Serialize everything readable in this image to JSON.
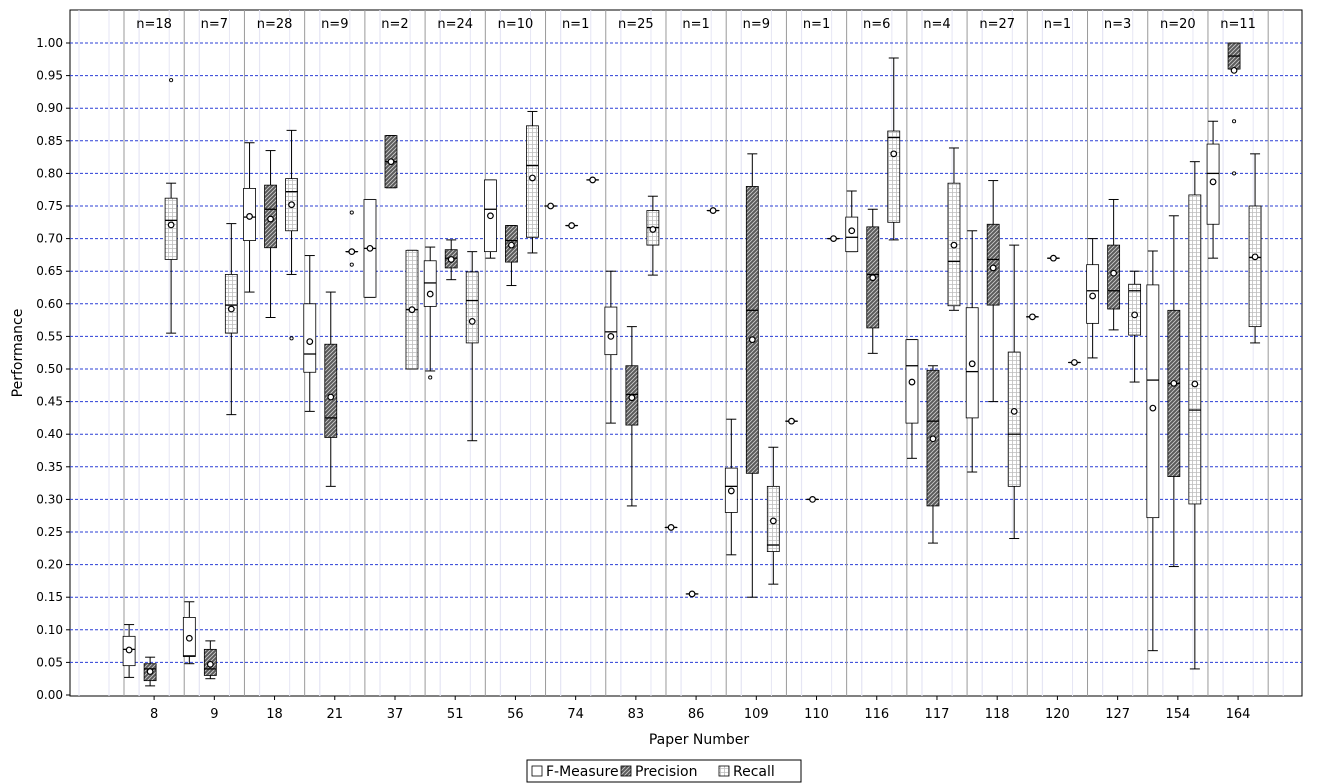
{
  "chart_data": {
    "type": "box",
    "xlabel": "Paper Number",
    "ylabel": "Performance",
    "ylim": [
      0,
      1
    ],
    "y_ticks": [
      "0.00",
      "0.05",
      "0.10",
      "0.15",
      "0.20",
      "0.25",
      "0.30",
      "0.35",
      "0.40",
      "0.45",
      "0.50",
      "0.55",
      "0.60",
      "0.65",
      "0.70",
      "0.75",
      "0.80",
      "0.85",
      "0.90",
      "0.95",
      "1.00"
    ],
    "legend_position": "bottom-center",
    "grid": true,
    "colors": {
      "f_measure_fill": "#ffffff",
      "precision_fill": "#5a5a5a",
      "recall_fill": "#e4e4e4",
      "grid_line": "#2b3fd6",
      "divider": "#9a9a9a"
    },
    "series": [
      {
        "name": "F-Measure"
      },
      {
        "name": "Precision"
      },
      {
        "name": "Recall"
      }
    ],
    "categories": [
      {
        "paper": "8",
        "n": "n=18",
        "boxes": [
          {
            "min": 0.027,
            "q1": 0.045,
            "med": 0.07,
            "q3": 0.09,
            "max": 0.108,
            "mean": 0.069,
            "outliers": []
          },
          {
            "min": 0.014,
            "q1": 0.022,
            "med": 0.04,
            "q3": 0.048,
            "max": 0.058,
            "mean": 0.036,
            "outliers": []
          },
          {
            "min": 0.555,
            "q1": 0.668,
            "med": 0.728,
            "q3": 0.762,
            "max": 0.785,
            "mean": 0.721,
            "outliers": [
              0.943
            ]
          }
        ]
      },
      {
        "paper": "9",
        "n": "n=7",
        "boxes": [
          {
            "min": 0.048,
            "q1": 0.059,
            "med": 0.06,
            "q3": 0.119,
            "max": 0.143,
            "mean": 0.087,
            "outliers": []
          },
          {
            "min": 0.025,
            "q1": 0.03,
            "med": 0.04,
            "q3": 0.07,
            "max": 0.083,
            "mean": 0.047,
            "outliers": []
          },
          {
            "min": 0.43,
            "q1": 0.555,
            "med": 0.598,
            "q3": 0.645,
            "max": 0.723,
            "mean": 0.592,
            "outliers": []
          }
        ]
      },
      {
        "paper": "18",
        "n": "n=28",
        "boxes": [
          {
            "min": 0.618,
            "q1": 0.697,
            "med": 0.733,
            "q3": 0.777,
            "max": 0.847,
            "mean": 0.734,
            "outliers": []
          },
          {
            "min": 0.579,
            "q1": 0.686,
            "med": 0.745,
            "q3": 0.782,
            "max": 0.835,
            "mean": 0.73,
            "outliers": []
          },
          {
            "min": 0.645,
            "q1": 0.712,
            "med": 0.772,
            "q3": 0.792,
            "max": 0.866,
            "mean": 0.752,
            "outliers": [
              0.547
            ]
          }
        ]
      },
      {
        "paper": "21",
        "n": "n=9",
        "boxes": [
          {
            "min": 0.435,
            "q1": 0.495,
            "med": 0.523,
            "q3": 0.6,
            "max": 0.674,
            "mean": 0.542,
            "outliers": []
          },
          {
            "min": 0.32,
            "q1": 0.395,
            "med": 0.425,
            "q3": 0.538,
            "max": 0.618,
            "mean": 0.457,
            "outliers": []
          },
          {
            "min": 0.68,
            "q1": 0.68,
            "med": 0.68,
            "q3": 0.68,
            "max": 0.68,
            "mean": 0.68,
            "outliers": [
              0.74,
              0.66
            ]
          }
        ]
      },
      {
        "paper": "37",
        "n": "n=2",
        "boxes": [
          {
            "min": 0.61,
            "q1": 0.61,
            "med": 0.685,
            "q3": 0.76,
            "max": 0.76,
            "mean": 0.685,
            "outliers": []
          },
          {
            "min": 0.778,
            "q1": 0.778,
            "med": 0.818,
            "q3": 0.858,
            "max": 0.858,
            "mean": 0.818,
            "outliers": []
          },
          {
            "min": 0.5,
            "q1": 0.5,
            "med": 0.591,
            "q3": 0.682,
            "max": 0.682,
            "mean": 0.591,
            "outliers": []
          }
        ]
      },
      {
        "paper": "51",
        "n": "n=24",
        "boxes": [
          {
            "min": 0.497,
            "q1": 0.596,
            "med": 0.632,
            "q3": 0.666,
            "max": 0.687,
            "mean": 0.615,
            "outliers": [
              0.487
            ]
          },
          {
            "min": 0.637,
            "q1": 0.655,
            "med": 0.67,
            "q3": 0.683,
            "max": 0.698,
            "mean": 0.668,
            "outliers": []
          },
          {
            "min": 0.39,
            "q1": 0.54,
            "med": 0.605,
            "q3": 0.649,
            "max": 0.68,
            "mean": 0.573,
            "outliers": []
          }
        ]
      },
      {
        "paper": "56",
        "n": "n=10",
        "boxes": [
          {
            "min": 0.67,
            "q1": 0.68,
            "med": 0.745,
            "q3": 0.79,
            "max": 0.79,
            "mean": 0.735,
            "outliers": []
          },
          {
            "min": 0.628,
            "q1": 0.664,
            "med": 0.697,
            "q3": 0.72,
            "max": 0.72,
            "mean": 0.69,
            "outliers": []
          },
          {
            "min": 0.678,
            "q1": 0.702,
            "med": 0.812,
            "q3": 0.873,
            "max": 0.895,
            "mean": 0.793,
            "outliers": []
          }
        ]
      },
      {
        "paper": "74",
        "n": "n=1",
        "boxes": [
          {
            "min": 0.75,
            "q1": 0.75,
            "med": 0.75,
            "q3": 0.75,
            "max": 0.75,
            "mean": 0.75,
            "outliers": []
          },
          {
            "min": 0.72,
            "q1": 0.72,
            "med": 0.72,
            "q3": 0.72,
            "max": 0.72,
            "mean": 0.72,
            "outliers": []
          },
          {
            "min": 0.79,
            "q1": 0.79,
            "med": 0.79,
            "q3": 0.79,
            "max": 0.79,
            "mean": 0.79,
            "outliers": []
          }
        ]
      },
      {
        "paper": "83",
        "n": "n=25",
        "boxes": [
          {
            "min": 0.417,
            "q1": 0.522,
            "med": 0.557,
            "q3": 0.595,
            "max": 0.65,
            "mean": 0.55,
            "outliers": []
          },
          {
            "min": 0.29,
            "q1": 0.414,
            "med": 0.461,
            "q3": 0.505,
            "max": 0.565,
            "mean": 0.456,
            "outliers": []
          },
          {
            "min": 0.644,
            "q1": 0.69,
            "med": 0.717,
            "q3": 0.743,
            "max": 0.765,
            "mean": 0.714,
            "outliers": []
          }
        ]
      },
      {
        "paper": "86",
        "n": "n=1",
        "boxes": [
          {
            "min": 0.257,
            "q1": 0.257,
            "med": 0.257,
            "q3": 0.257,
            "max": 0.257,
            "mean": 0.257,
            "outliers": []
          },
          {
            "min": 0.155,
            "q1": 0.155,
            "med": 0.155,
            "q3": 0.155,
            "max": 0.155,
            "mean": 0.155,
            "outliers": []
          },
          {
            "min": 0.743,
            "q1": 0.743,
            "med": 0.743,
            "q3": 0.743,
            "max": 0.743,
            "mean": 0.743,
            "outliers": []
          }
        ]
      },
      {
        "paper": "109",
        "n": "n=9",
        "boxes": [
          {
            "min": 0.215,
            "q1": 0.28,
            "med": 0.32,
            "q3": 0.348,
            "max": 0.423,
            "mean": 0.313,
            "outliers": []
          },
          {
            "min": 0.15,
            "q1": 0.34,
            "med": 0.59,
            "q3": 0.78,
            "max": 0.83,
            "mean": 0.545,
            "outliers": []
          },
          {
            "min": 0.17,
            "q1": 0.22,
            "med": 0.23,
            "q3": 0.32,
            "max": 0.38,
            "mean": 0.267,
            "outliers": []
          }
        ]
      },
      {
        "paper": "110",
        "n": "n=1",
        "boxes": [
          {
            "min": 0.42,
            "q1": 0.42,
            "med": 0.42,
            "q3": 0.42,
            "max": 0.42,
            "mean": 0.42,
            "outliers": []
          },
          {
            "min": 0.3,
            "q1": 0.3,
            "med": 0.3,
            "q3": 0.3,
            "max": 0.3,
            "mean": 0.3,
            "outliers": []
          },
          {
            "min": 0.7,
            "q1": 0.7,
            "med": 0.7,
            "q3": 0.7,
            "max": 0.7,
            "mean": 0.7,
            "outliers": []
          }
        ]
      },
      {
        "paper": "116",
        "n": "n=6",
        "boxes": [
          {
            "min": 0.68,
            "q1": 0.68,
            "med": 0.702,
            "q3": 0.733,
            "max": 0.773,
            "mean": 0.712,
            "outliers": []
          },
          {
            "min": 0.524,
            "q1": 0.563,
            "med": 0.645,
            "q3": 0.718,
            "max": 0.745,
            "mean": 0.64,
            "outliers": []
          },
          {
            "min": 0.698,
            "q1": 0.725,
            "med": 0.855,
            "q3": 0.865,
            "max": 0.977,
            "mean": 0.83,
            "outliers": []
          }
        ]
      },
      {
        "paper": "117",
        "n": "n=4",
        "boxes": [
          {
            "min": 0.363,
            "q1": 0.417,
            "med": 0.505,
            "q3": 0.545,
            "max": 0.545,
            "mean": 0.48,
            "outliers": []
          },
          {
            "min": 0.233,
            "q1": 0.29,
            "med": 0.42,
            "q3": 0.498,
            "max": 0.505,
            "mean": 0.393,
            "outliers": []
          },
          {
            "min": 0.59,
            "q1": 0.597,
            "med": 0.665,
            "q3": 0.785,
            "max": 0.839,
            "mean": 0.69,
            "outliers": []
          }
        ]
      },
      {
        "paper": "118",
        "n": "n=27",
        "boxes": [
          {
            "min": 0.342,
            "q1": 0.425,
            "med": 0.496,
            "q3": 0.594,
            "max": 0.712,
            "mean": 0.508,
            "outliers": []
          },
          {
            "min": 0.45,
            "q1": 0.598,
            "med": 0.668,
            "q3": 0.722,
            "max": 0.789,
            "mean": 0.655,
            "outliers": []
          },
          {
            "min": 0.24,
            "q1": 0.32,
            "med": 0.4,
            "q3": 0.526,
            "max": 0.69,
            "mean": 0.435,
            "outliers": []
          }
        ]
      },
      {
        "paper": "120",
        "n": "n=1",
        "boxes": [
          {
            "min": 0.58,
            "q1": 0.58,
            "med": 0.58,
            "q3": 0.58,
            "max": 0.58,
            "mean": 0.58,
            "outliers": []
          },
          {
            "min": 0.67,
            "q1": 0.67,
            "med": 0.67,
            "q3": 0.67,
            "max": 0.67,
            "mean": 0.67,
            "outliers": []
          },
          {
            "min": 0.51,
            "q1": 0.51,
            "med": 0.51,
            "q3": 0.51,
            "max": 0.51,
            "mean": 0.51,
            "outliers": []
          }
        ]
      },
      {
        "paper": "127",
        "n": "n=3",
        "boxes": [
          {
            "min": 0.517,
            "q1": 0.57,
            "med": 0.62,
            "q3": 0.66,
            "max": 0.7,
            "mean": 0.612,
            "outliers": []
          },
          {
            "min": 0.56,
            "q1": 0.592,
            "med": 0.62,
            "q3": 0.69,
            "max": 0.76,
            "mean": 0.647,
            "outliers": []
          },
          {
            "min": 0.48,
            "q1": 0.552,
            "med": 0.62,
            "q3": 0.63,
            "max": 0.65,
            "mean": 0.583,
            "outliers": []
          }
        ]
      },
      {
        "paper": "154",
        "n": "n=20",
        "boxes": [
          {
            "min": 0.068,
            "q1": 0.272,
            "med": 0.483,
            "q3": 0.629,
            "max": 0.681,
            "mean": 0.44,
            "outliers": []
          },
          {
            "min": 0.197,
            "q1": 0.335,
            "med": 0.478,
            "q3": 0.59,
            "max": 0.735,
            "mean": 0.478,
            "outliers": []
          },
          {
            "min": 0.04,
            "q1": 0.293,
            "med": 0.437,
            "q3": 0.767,
            "max": 0.818,
            "mean": 0.477,
            "outliers": []
          }
        ]
      },
      {
        "paper": "164",
        "n": "n=11",
        "boxes": [
          {
            "min": 0.67,
            "q1": 0.722,
            "med": 0.8,
            "q3": 0.845,
            "max": 0.88,
            "mean": 0.787,
            "outliers": []
          },
          {
            "min": 0.96,
            "q1": 0.96,
            "med": 0.98,
            "q3": 1.0,
            "max": 1.0,
            "mean": 0.958,
            "outliers": [
              0.88,
              0.8
            ]
          },
          {
            "min": 0.54,
            "q1": 0.565,
            "med": 0.671,
            "q3": 0.75,
            "max": 0.83,
            "mean": 0.672,
            "outliers": []
          }
        ]
      }
    ]
  }
}
